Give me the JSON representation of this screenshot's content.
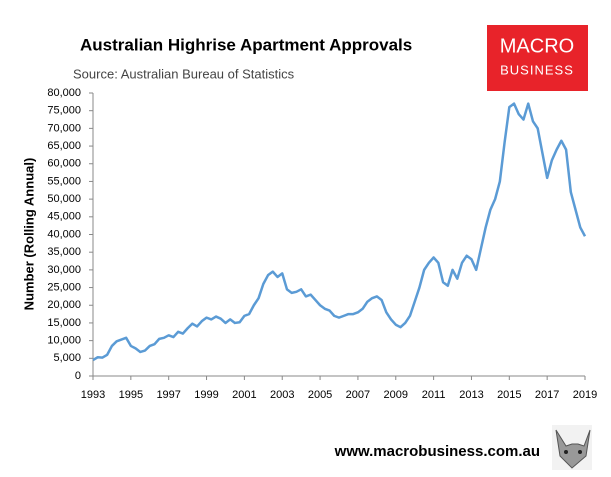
{
  "chart_data": {
    "type": "line",
    "title": "Australian Highrise Apartment Approvals",
    "subtitle": "Source: Australian Bureau of Statistics",
    "y_label": "Number (Rolling Annual)",
    "x": [
      1993,
      1993.25,
      1993.5,
      1993.75,
      1994,
      1994.25,
      1994.5,
      1994.75,
      1995,
      1995.25,
      1995.5,
      1995.75,
      1996,
      1996.25,
      1996.5,
      1996.75,
      1997,
      1997.25,
      1997.5,
      1997.75,
      1998,
      1998.25,
      1998.5,
      1998.75,
      1999,
      1999.25,
      1999.5,
      1999.75,
      2000,
      2000.25,
      2000.5,
      2000.75,
      2001,
      2001.25,
      2001.5,
      2001.75,
      2002,
      2002.25,
      2002.5,
      2002.75,
      2003,
      2003.25,
      2003.5,
      2003.75,
      2004,
      2004.25,
      2004.5,
      2004.75,
      2005,
      2005.25,
      2005.5,
      2005.75,
      2006,
      2006.25,
      2006.5,
      2006.75,
      2007,
      2007.25,
      2007.5,
      2007.75,
      2008,
      2008.25,
      2008.5,
      2008.75,
      2009,
      2009.25,
      2009.5,
      2009.75,
      2010,
      2010.25,
      2010.5,
      2010.75,
      2011,
      2011.25,
      2011.5,
      2011.75,
      2012,
      2012.25,
      2012.5,
      2012.75,
      2013,
      2013.25,
      2013.5,
      2013.75,
      2014,
      2014.25,
      2014.5,
      2014.75,
      2015,
      2015.25,
      2015.5,
      2015.75,
      2016,
      2016.25,
      2016.5,
      2016.75,
      2017,
      2017.25,
      2017.5,
      2017.75,
      2018,
      2018.25,
      2018.5,
      2018.75,
      2019
    ],
    "series": [
      {
        "name": "Highrise approvals",
        "color": "#5b9bd5",
        "values": [
          4500,
          5300,
          5200,
          6000,
          8500,
          9800,
          10300,
          10800,
          8500,
          7800,
          6800,
          7200,
          8500,
          9000,
          10500,
          10800,
          11500,
          11000,
          12500,
          12000,
          13500,
          14800,
          14000,
          15500,
          16500,
          16000,
          16800,
          16200,
          15000,
          16000,
          15000,
          15200,
          17000,
          17500,
          20000,
          22000,
          26000,
          28500,
          29500,
          28000,
          29000,
          24500,
          23500,
          23800,
          24500,
          22500,
          23000,
          21500,
          20000,
          19000,
          18500,
          17000,
          16500,
          17000,
          17500,
          17500,
          18000,
          19000,
          21000,
          22000,
          22500,
          21500,
          18000,
          16000,
          14500,
          13800,
          15000,
          17000,
          21000,
          25000,
          30000,
          32000,
          33500,
          32000,
          26500,
          25500,
          30000,
          27500,
          32000,
          34000,
          33000,
          30000,
          36000,
          42000,
          47000,
          50000,
          55000,
          66000,
          76000,
          77000,
          74000,
          72500,
          77000,
          72000,
          70000,
          63000,
          56000,
          61000,
          64000,
          66500,
          64000,
          52000,
          47000,
          42000,
          39500
        ]
      }
    ],
    "xlim": [
      1993,
      2019
    ],
    "xticks": [
      1993,
      1995,
      1997,
      1999,
      2001,
      2003,
      2005,
      2007,
      2009,
      2011,
      2013,
      2015,
      2017,
      2019
    ],
    "ylim": [
      0,
      80000
    ],
    "yticks": [
      0,
      {
        "value": 5000,
        "label": "5,000"
      },
      {
        "value": 10000,
        "label": "10,000"
      },
      {
        "value": 15000,
        "label": "15,000"
      },
      {
        "value": 20000,
        "label": "20,000"
      },
      {
        "value": 25000,
        "label": "25,000"
      },
      {
        "value": 30000,
        "label": "30,000"
      },
      {
        "value": 35000,
        "label": "35,000"
      },
      {
        "value": 40000,
        "label": "40,000"
      },
      {
        "value": 45000,
        "label": "45,000"
      },
      {
        "value": 50000,
        "label": "50,000"
      },
      {
        "value": 55000,
        "label": "55,000"
      },
      {
        "value": 60000,
        "label": "60,000"
      },
      {
        "value": 65000,
        "label": "65,000"
      },
      {
        "value": 70000,
        "label": "70,000"
      },
      {
        "value": 75000,
        "label": "75,000"
      },
      {
        "value": 80000,
        "label": "80,000"
      }
    ],
    "grid": false
  },
  "logo": {
    "line1": "MACRO",
    "line2": "BUSINESS"
  },
  "footer": "www.macrobusiness.com.au"
}
